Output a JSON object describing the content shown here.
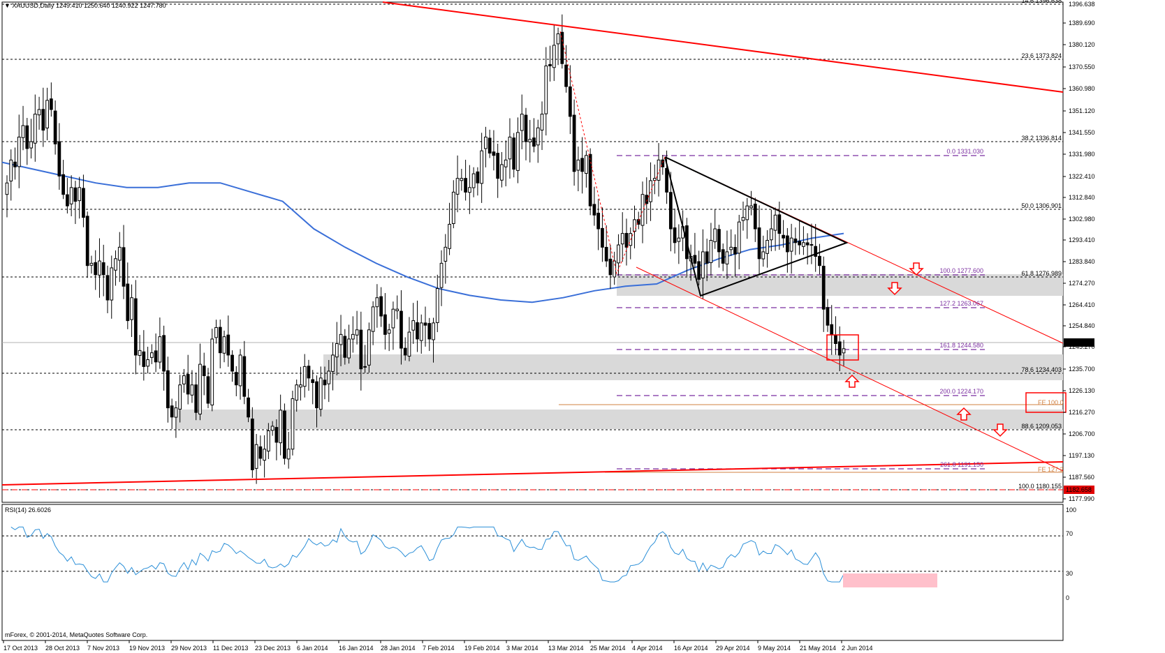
{
  "header": {
    "symbol": "XAUUSD,Daily",
    "ohlc": "1249.410 1250.640 1240.922 1247.780"
  },
  "rsi_header": "RSI(14) 26.6026",
  "copyright": "mForex, © 2001-2014, MetaQuotes Software Corp.",
  "colors": {
    "trendline": "#ff0000",
    "ma": "#3a6fd8",
    "rsi": "#2b8fd8",
    "fib_purple": "#7b2fa0",
    "zone": "#d9d9d9",
    "rsi_zone": "#ffc0cb",
    "price_box": "#000000"
  },
  "price_axis": {
    "ticks": [
      "1389.690",
      "1380.120",
      "1370.550",
      "1360.980",
      "1351.120",
      "1341.550",
      "1331.980",
      "1322.410",
      "1312.840",
      "1302.980",
      "1293.410",
      "1283.840",
      "1274.270",
      "1264.410",
      "1254.840",
      "1245.270",
      "1235.700",
      "1226.130",
      "1216.270",
      "1206.700",
      "1197.130",
      "1187.560",
      "1177.990"
    ],
    "top_label": "1396.638",
    "current_price": "1247.780",
    "lower_box": "1182.658"
  },
  "rsi_axis": {
    "ticks": [
      "100",
      "70",
      "30",
      "0"
    ]
  },
  "date_axis": [
    "17 Oct 2013",
    "28 Oct 2013",
    "7 Nov 2013",
    "19 Nov 2013",
    "29 Nov 2013",
    "11 Dec 2013",
    "23 Dec 2013",
    "6 Jan 2014",
    "16 Jan 2014",
    "28 Jan 2014",
    "7 Feb 2014",
    "19 Feb 2014",
    "3 Mar 2014",
    "13 Mar 2014",
    "25 Mar 2014",
    "4 Apr 2014",
    "16 Apr 2014",
    "29 Apr 2014",
    "9 May 2014",
    "21 May 2014",
    "2 Jun 2014"
  ],
  "fib_retracement": [
    {
      "level": "14.6",
      "price": "1396.638"
    },
    {
      "level": "23.6",
      "price": "1373.824"
    },
    {
      "level": "38.2",
      "price": "1336.814"
    },
    {
      "level": "50.0",
      "price": "1306.901"
    },
    {
      "level": "61.8",
      "price": "1276.989"
    },
    {
      "level": "78.6",
      "price": "1234.403"
    },
    {
      "level": "88.6",
      "price": "1209.053"
    },
    {
      "level": "100.0",
      "price": "1180.155"
    }
  ],
  "fib_extension": [
    {
      "level": "0.0",
      "price": "1331.030"
    },
    {
      "level": "100.0",
      "price": "1277.600"
    },
    {
      "level": "127.2",
      "price": "1263.067"
    },
    {
      "level": "161.8",
      "price": "1244.580"
    },
    {
      "level": "200.0",
      "price": "1224.170"
    },
    {
      "level": "261.8",
      "price": "1191.150"
    }
  ],
  "fe_labels": [
    "FE 100.0",
    "FE 127.2"
  ],
  "chart_data": {
    "type": "candlestick",
    "symbol": "XAUUSD",
    "timeframe": "Daily",
    "x_range": [
      "17 Oct 2013",
      "5 Jun 2014"
    ],
    "y_range": [
      1177.99,
      1398.0
    ],
    "series": [
      {
        "name": "close",
        "values": [
          1320,
          1330,
          1327,
          1340,
          1345,
          1335,
          1338,
          1350,
          1352,
          1343,
          1356,
          1352,
          1337,
          1323,
          1315,
          1310,
          1318,
          1312,
          1318,
          1305,
          1284,
          1285,
          1280,
          1286,
          1280,
          1269,
          1283,
          1287,
          1292,
          1275,
          1260,
          1270,
          1245,
          1247,
          1240,
          1243,
          1246,
          1242,
          1253,
          1238,
          1222,
          1218,
          1222,
          1232,
          1236,
          1228,
          1232,
          1220,
          1241,
          1236,
          1224,
          1252,
          1257,
          1246,
          1253,
          1245,
          1238,
          1232,
          1245,
          1227,
          1218,
          1195,
          1206,
          1200,
          1204,
          1212,
          1214,
          1207,
          1221,
          1200,
          1204,
          1226,
          1232,
          1232,
          1240,
          1235,
          1233,
          1222,
          1235,
          1232,
          1238,
          1245,
          1250,
          1254,
          1244,
          1252,
          1254,
          1256,
          1239,
          1240,
          1256,
          1266,
          1270,
          1262,
          1254,
          1256,
          1265,
          1265,
          1248,
          1245,
          1255,
          1260,
          1252,
          1259,
          1258,
          1252,
          1259,
          1274,
          1285,
          1292,
          1302,
          1316,
          1322,
          1322,
          1316,
          1318,
          1324,
          1320,
          1334,
          1340,
          1333,
          1332,
          1322,
          1328,
          1330,
          1340,
          1326,
          1342,
          1350,
          1338,
          1339,
          1336,
          1344,
          1350,
          1371,
          1371,
          1380,
          1385,
          1372,
          1362,
          1349,
          1325,
          1330,
          1325,
          1332,
          1310,
          1306,
          1300,
          1292,
          1286,
          1280,
          1286,
          1293,
          1298,
          1292,
          1298,
          1304,
          1302,
          1315,
          1311,
          1321,
          1322,
          1330,
          1327,
          1316,
          1300,
          1294,
          1296,
          1301,
          1287,
          1288,
          1285,
          1278,
          1290,
          1285,
          1295,
          1300,
          1290,
          1285,
          1290,
          1292,
          1289,
          1303,
          1305,
          1310,
          1310,
          1300,
          1287,
          1290,
          1295,
          1300,
          1306,
          1298,
          1296,
          1290,
          1296,
          1294,
          1293,
          1294,
          1293,
          1293,
          1288,
          1284,
          1265,
          1258,
          1254,
          1250,
          1245,
          1247.78
        ]
      }
    ],
    "moving_average": {
      "name": "MA",
      "approx_values": [
        1329,
        1326,
        1323,
        1320,
        1318,
        1318,
        1320,
        1320,
        1316,
        1312,
        1300,
        1292,
        1285,
        1279,
        1274,
        1271,
        1269,
        1268,
        1270,
        1273,
        1275,
        1276,
        1282,
        1287,
        1291,
        1293,
        1296,
        1298
      ]
    },
    "rsi": {
      "period": 14,
      "last": 26.6026,
      "ylim": [
        0,
        100
      ],
      "levels": [
        70,
        30
      ]
    },
    "annotations": [
      "descending triangle",
      "descending channel",
      "support zones",
      "fibonacci retracement",
      "fibonacci expansion"
    ]
  }
}
